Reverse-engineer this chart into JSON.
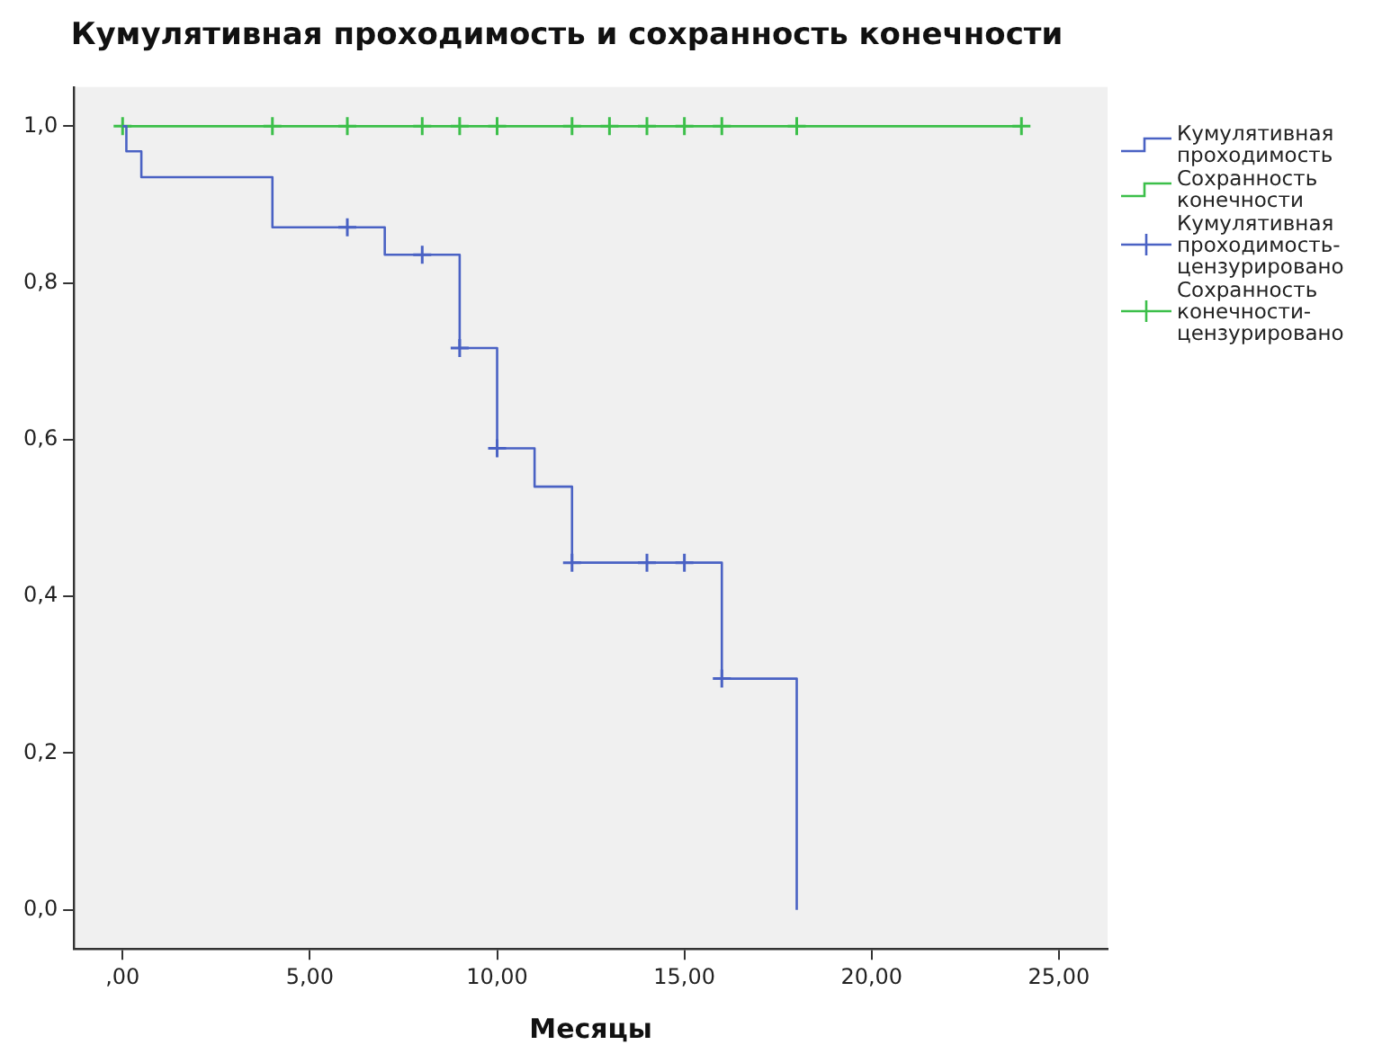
{
  "chart_data": {
    "type": "step",
    "title": "Кумулятивная проходимость и сохранность конечности",
    "xlabel": "Месяцы",
    "xlim": [
      -1.3,
      26.3
    ],
    "ylim": [
      -0.05,
      1.05
    ],
    "xticks": [
      {
        "value": 0,
        "label": ",00"
      },
      {
        "value": 5,
        "label": "5,00"
      },
      {
        "value": 10,
        "label": "10,00"
      },
      {
        "value": 15,
        "label": "15,00"
      },
      {
        "value": 20,
        "label": "20,00"
      },
      {
        "value": 25,
        "label": "25,00"
      }
    ],
    "yticks": [
      {
        "value": 0,
        "label": "0,0"
      },
      {
        "value": 0.2,
        "label": "0,2"
      },
      {
        "value": 0.4,
        "label": "0,4"
      },
      {
        "value": 0.6,
        "label": "0,6"
      },
      {
        "value": 0.8,
        "label": "0,8"
      },
      {
        "value": 1,
        "label": "1,0"
      }
    ],
    "grid": false,
    "legend": "right",
    "series": [
      {
        "name": "Кумулятивная проходимость",
        "color": "#4a62c4",
        "marker": "none",
        "x": [
          0,
          0.1,
          0.5,
          4,
          7,
          9,
          10,
          11,
          12,
          16,
          18
        ],
        "values": [
          1,
          0.968,
          0.935,
          0.871,
          0.836,
          0.717,
          0.589,
          0.54,
          0.443,
          0.295,
          0
        ]
      },
      {
        "name": "Сохранность конечности",
        "color": "#3cbf4a",
        "marker": "none",
        "x": [
          0,
          24
        ],
        "values": [
          1,
          1
        ]
      },
      {
        "name": "Кумулятивная проходимость-цензурировано",
        "type": "scatter",
        "color": "#4a62c4",
        "marker": "cross",
        "x": [
          6,
          8,
          9,
          10,
          12,
          14,
          15,
          16
        ],
        "values": [
          0.871,
          0.836,
          0.717,
          0.589,
          0.443,
          0.443,
          0.443,
          0.295
        ]
      },
      {
        "name": "Сохранность конечности-цензурировано",
        "type": "scatter",
        "color": "#3cbf4a",
        "marker": "cross",
        "x": [
          0,
          4,
          6,
          8,
          9,
          10,
          12,
          13,
          14,
          15,
          16,
          18,
          24
        ],
        "values": [
          1,
          1,
          1,
          1,
          1,
          1,
          1,
          1,
          1,
          1,
          1,
          1,
          1
        ]
      }
    ]
  }
}
